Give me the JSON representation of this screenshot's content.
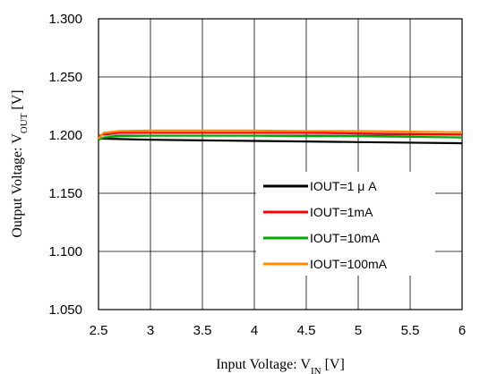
{
  "chart_data": {
    "type": "line",
    "xlabel": {
      "main": "Input Voltage: V",
      "sub": "IN",
      "unit": " [V]"
    },
    "ylabel": {
      "main": "Output Voltage: V",
      "sub": "OUT",
      "unit": " [V]"
    },
    "xlim": [
      2.5,
      6
    ],
    "ylim": [
      1.05,
      1.3
    ],
    "x_ticks": [
      "2.5",
      "3",
      "3.5",
      "4",
      "4.5",
      "5",
      "5.5",
      "6"
    ],
    "x_tick_values": [
      2.5,
      3,
      3.5,
      4,
      4.5,
      5,
      5.5,
      6
    ],
    "y_ticks": [
      "1.300",
      "1.250",
      "1.200",
      "1.150",
      "1.100",
      "1.050"
    ],
    "y_tick_values": [
      1.3,
      1.25,
      1.2,
      1.15,
      1.1,
      1.05
    ],
    "grid": true,
    "legend_position": "bottom-right",
    "series": [
      {
        "name": "IOUT=1µA",
        "legend_label": "IOUT=1 μ A",
        "color": "#000000",
        "x": [
          2.5,
          3,
          3.5,
          4,
          4.5,
          5,
          5.5,
          6
        ],
        "y": [
          1.197,
          1.196,
          1.1955,
          1.195,
          1.1945,
          1.194,
          1.1935,
          1.193
        ]
      },
      {
        "name": "IOUT=1mA",
        "legend_label": "IOUT=1mA",
        "color": "#ff0000",
        "x": [
          2.5,
          2.55,
          2.7,
          3,
          3.5,
          4,
          4.5,
          5,
          5.5,
          6
        ],
        "y": [
          1.199,
          1.201,
          1.202,
          1.202,
          1.202,
          1.202,
          1.202,
          1.2015,
          1.201,
          1.2005
        ]
      },
      {
        "name": "IOUT=10mA",
        "legend_label": "IOUT=10mA",
        "color": "#00aa00",
        "x": [
          2.5,
          2.55,
          2.7,
          3,
          3.5,
          4,
          4.5,
          5,
          5.5,
          6
        ],
        "y": [
          1.196,
          1.198,
          1.199,
          1.1995,
          1.1995,
          1.1995,
          1.199,
          1.199,
          1.1985,
          1.198
        ]
      },
      {
        "name": "IOUT=100mA",
        "legend_label": "IOUT=100mA",
        "color": "#ff8c00",
        "x": [
          2.5,
          2.55,
          2.7,
          3,
          3.5,
          4,
          4.5,
          5,
          5.5,
          6
        ],
        "y": [
          1.197,
          1.202,
          1.2035,
          1.204,
          1.204,
          1.204,
          1.2035,
          1.2035,
          1.203,
          1.2025
        ]
      }
    ]
  }
}
